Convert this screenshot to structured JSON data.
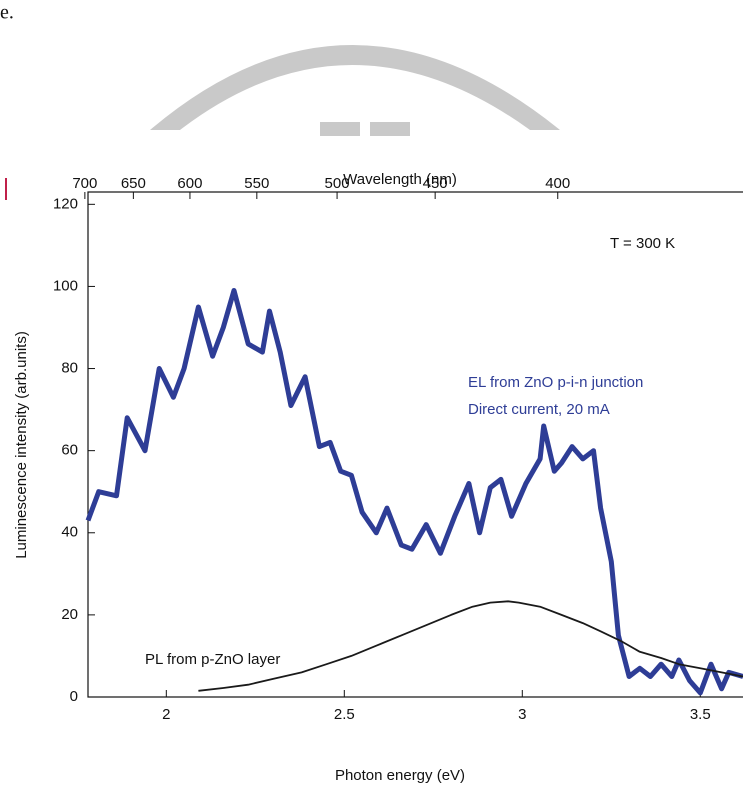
{
  "page_text": "e.",
  "chart_data": {
    "type": "line",
    "xlabel": "Photon energy (eV)",
    "ylabel": "Luminescence intensity (arb.units)",
    "x2label": "Wavelength (nm)",
    "xlim": [
      1.78,
      3.62
    ],
    "xticks": [
      2.0,
      2.5,
      3.0,
      3.5
    ],
    "ylim": [
      0,
      123
    ],
    "yticks": [
      0,
      20,
      40,
      60,
      80,
      100,
      120
    ],
    "x2ticks": [
      700,
      650,
      600,
      550,
      500,
      450,
      400
    ],
    "annotations": [
      "T = 300 K",
      "EL from ZnO p-i-n junction",
      "Direct current, 20 mA",
      "PL from p-ZnO layer"
    ],
    "series": [
      {
        "color": "#2e3d96",
        "x": [
          1.78,
          1.81,
          1.86,
          1.89,
          1.94,
          1.98,
          2.02,
          2.05,
          2.09,
          2.13,
          2.16,
          2.19,
          2.23,
          2.27,
          2.29,
          2.32,
          2.35,
          2.39,
          2.43,
          2.46,
          2.49,
          2.52,
          2.55,
          2.59,
          2.62,
          2.66,
          2.69,
          2.73,
          2.77,
          2.81,
          2.85,
          2.88,
          2.91,
          2.94,
          2.97,
          3.01,
          3.05,
          3.06,
          3.09,
          3.11,
          3.14,
          3.17,
          3.2,
          3.22,
          3.25,
          3.27,
          3.3,
          3.33,
          3.36,
          3.39,
          3.42,
          3.44,
          3.47,
          3.5,
          3.53,
          3.56,
          3.58,
          3.62
        ],
        "values": [
          43,
          50,
          49,
          68,
          60,
          80,
          73,
          80,
          95,
          83,
          90,
          99,
          86,
          84,
          94,
          84,
          71,
          78,
          61,
          62,
          55,
          54,
          45,
          40,
          46,
          37,
          36,
          42,
          35,
          44,
          52,
          40,
          51,
          53,
          44,
          52,
          58,
          66,
          55,
          57,
          61,
          58,
          60,
          46,
          33,
          15,
          5,
          7,
          5,
          8,
          5,
          9,
          4,
          1,
          8,
          2,
          6,
          5
        ]
      },
      {
        "color": "#1a1a1a",
        "x": [
          2.09,
          2.16,
          2.23,
          2.3,
          2.38,
          2.45,
          2.52,
          2.59,
          2.66,
          2.73,
          2.8,
          2.86,
          2.91,
          2.96,
          2.99,
          3.05,
          3.11,
          3.17,
          3.22,
          3.28,
          3.33,
          3.39,
          3.44,
          3.5,
          3.56,
          3.62
        ],
        "values": [
          1.5,
          2.2,
          3,
          4.4,
          6,
          8,
          10,
          12.5,
          15,
          17.5,
          20,
          22,
          23,
          23.3,
          23,
          22,
          20,
          18,
          16,
          13.5,
          11,
          9.5,
          8,
          7,
          6,
          5
        ]
      }
    ]
  }
}
